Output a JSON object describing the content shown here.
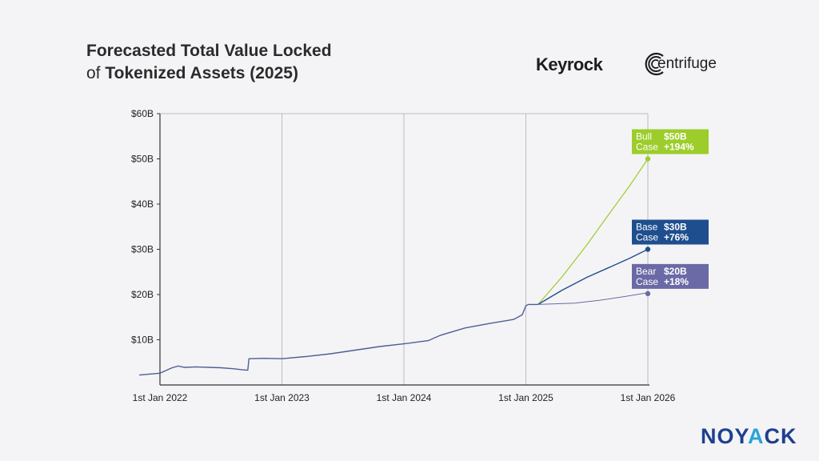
{
  "title": {
    "line1": "Forecasted Total Value Locked",
    "line2_prefix": "of",
    "line2_main": "Tokenized Assets (2025)"
  },
  "logos": {
    "keyrock": "Keyrock",
    "centrifuge": "entrifuge",
    "noyack_part1": "NOY",
    "noyack_part2": "A",
    "noyack_part3": "CK"
  },
  "colors": {
    "bull": "#9ccd2a",
    "base": "#1f4e8f",
    "bear": "#6b6aa6",
    "history": "#4d5f93",
    "grid": "#bdbdbd",
    "axis": "#333333"
  },
  "chart_data": {
    "type": "line",
    "x_ticks": [
      "1st Jan 2022",
      "1st Jan 2023",
      "1st Jan 2024",
      "1st Jan 2025",
      "1st Jan 2026"
    ],
    "y_ticks": [
      "$10B",
      "$20B",
      "$30B",
      "$40B",
      "$50B",
      "$60B"
    ],
    "ylim": [
      0,
      60
    ],
    "xlim": [
      2022.0,
      2026.0
    ],
    "grid": true,
    "series": [
      {
        "key": "history",
        "x": [
          2021.83,
          2022.0,
          2022.05,
          2022.1,
          2022.15,
          2022.2,
          2022.3,
          2022.4,
          2022.5,
          2022.6,
          2022.7,
          2022.72,
          2022.73,
          2022.85,
          2023.0,
          2023.2,
          2023.4,
          2023.6,
          2023.8,
          2024.0,
          2024.2,
          2024.3,
          2024.5,
          2024.7,
          2024.9,
          2024.97,
          2025.0,
          2025.02,
          2025.1
        ],
        "y": [
          2.2,
          2.6,
          3.2,
          3.8,
          4.2,
          3.9,
          4.0,
          3.9,
          3.8,
          3.6,
          3.3,
          3.3,
          5.8,
          5.9,
          5.8,
          6.3,
          6.9,
          7.7,
          8.5,
          9.1,
          9.8,
          11.0,
          12.6,
          13.6,
          14.5,
          15.5,
          17.5,
          17.8,
          17.8
        ]
      },
      {
        "key": "bull",
        "x": [
          2025.1,
          2025.3,
          2025.5,
          2025.7,
          2025.85,
          2026.0
        ],
        "y": [
          17.8,
          24.0,
          31.0,
          38.5,
          44.0,
          50.0
        ]
      },
      {
        "key": "base",
        "x": [
          2025.1,
          2025.3,
          2025.5,
          2025.7,
          2025.85,
          2026.0
        ],
        "y": [
          17.8,
          21.0,
          23.8,
          26.2,
          28.0,
          30.0
        ]
      },
      {
        "key": "bear",
        "x": [
          2025.1,
          2025.4,
          2025.6,
          2025.8,
          2026.0
        ],
        "y": [
          17.8,
          18.1,
          18.7,
          19.5,
          20.4
        ]
      }
    ],
    "annotations": [
      {
        "key": "bull",
        "x": 2026.0,
        "y": 50.0,
        "line1": "Bull",
        "line2": "Case",
        "value": "$50B",
        "change": "+194%"
      },
      {
        "key": "base",
        "x": 2026.0,
        "y": 30.0,
        "line1": "Base",
        "line2": "Case",
        "value": "$30B",
        "change": "+76%"
      },
      {
        "key": "bear",
        "x": 2026.0,
        "y": 20.2,
        "line1": "Bear",
        "line2": "Case",
        "value": "$20B",
        "change": "+18%"
      }
    ]
  }
}
